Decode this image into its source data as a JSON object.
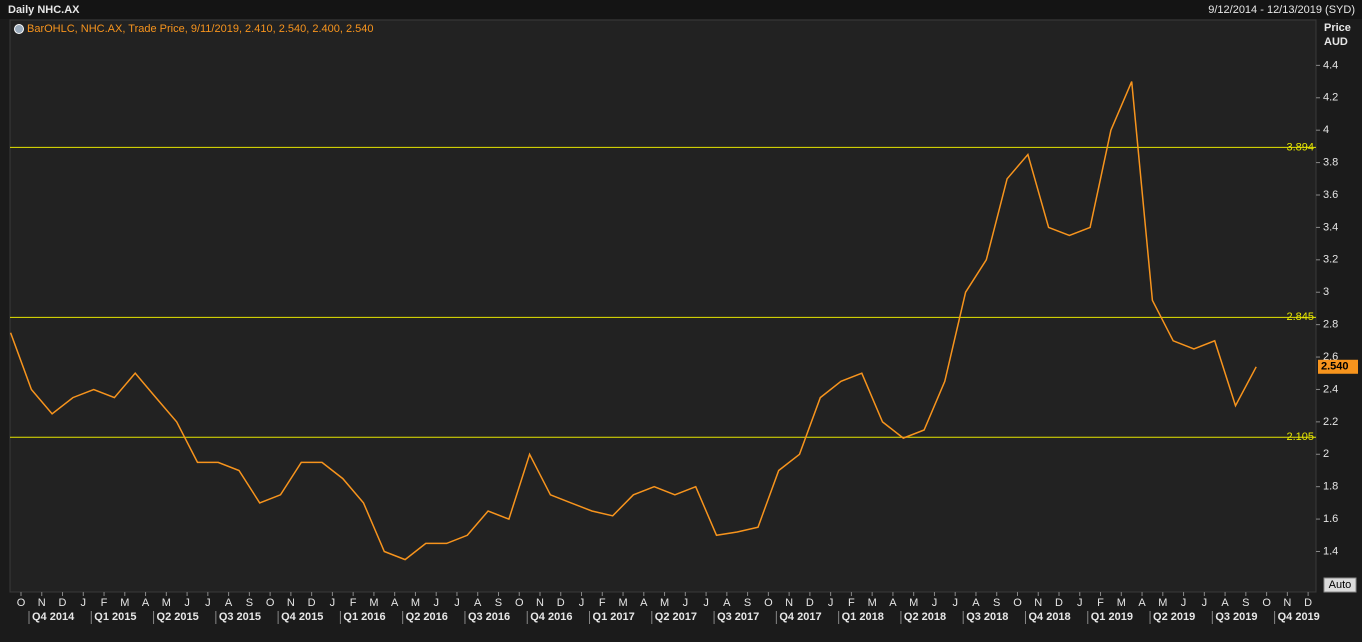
{
  "chart_data": {
    "type": "line",
    "title": "Daily NHC.AX",
    "subtitle": "9/12/2014 - 12/13/2019 (SYD)",
    "legend_text": "BarOHLC, NHC.AX, Trade Price, 9/11/2019, 2.410, 2.540, 2.400, 2.540",
    "y_axis_label": "Price",
    "y_axis_unit": "AUD",
    "auto_button": "Auto",
    "color": "#f7941d",
    "line_color": "#e6e600",
    "x": [
      "2014-09",
      "2014-10",
      "2014-11",
      "2014-12",
      "2015-01",
      "2015-02",
      "2015-03",
      "2015-04",
      "2015-05",
      "2015-06",
      "2015-07",
      "2015-08",
      "2015-09",
      "2015-10",
      "2015-11",
      "2015-12",
      "2016-01",
      "2016-02",
      "2016-03",
      "2016-04",
      "2016-05",
      "2016-06",
      "2016-07",
      "2016-08",
      "2016-09",
      "2016-10",
      "2016-11",
      "2016-12",
      "2017-01",
      "2017-02",
      "2017-03",
      "2017-04",
      "2017-05",
      "2017-06",
      "2017-07",
      "2017-08",
      "2017-09",
      "2017-10",
      "2017-11",
      "2017-12",
      "2018-01",
      "2018-02",
      "2018-03",
      "2018-04",
      "2018-05",
      "2018-06",
      "2018-07",
      "2018-08",
      "2018-09",
      "2018-10",
      "2018-11",
      "2018-12",
      "2019-01",
      "2019-02",
      "2019-03",
      "2019-04",
      "2019-05",
      "2019-06",
      "2019-07",
      "2019-08",
      "2019-09"
    ],
    "values": [
      2.75,
      2.4,
      2.25,
      2.35,
      2.4,
      2.35,
      2.5,
      2.35,
      2.2,
      1.95,
      1.95,
      1.9,
      1.7,
      1.75,
      1.95,
      1.95,
      1.85,
      1.7,
      1.4,
      1.35,
      1.45,
      1.45,
      1.5,
      1.65,
      1.6,
      2.0,
      1.75,
      1.7,
      1.65,
      1.62,
      1.75,
      1.8,
      1.75,
      1.8,
      1.5,
      1.52,
      1.55,
      1.9,
      2.0,
      2.35,
      2.45,
      2.5,
      2.2,
      2.1,
      2.15,
      2.45,
      3.0,
      3.2,
      3.7,
      3.85,
      3.4,
      3.35,
      3.4,
      4.0,
      4.3,
      2.95,
      2.7,
      2.65,
      2.7,
      2.3,
      2.54
    ],
    "last_price": {
      "value": 2.54,
      "label": "2.540"
    },
    "hlines": [
      {
        "value": 3.894,
        "label": "3.894"
      },
      {
        "value": 2.845,
        "label": "2.845"
      },
      {
        "value": 2.105,
        "label": "2.105"
      }
    ],
    "ylim": [
      1.15,
      4.68
    ],
    "yticks": [
      1.4,
      1.6,
      1.8,
      2,
      2.2,
      2.4,
      2.6,
      2.8,
      3,
      3.2,
      3.4,
      3.6,
      3.8,
      4,
      4.2,
      4.4
    ],
    "xticks": [
      {
        "value": "2014-10",
        "label": "O"
      },
      {
        "value": "2014-11",
        "label": "N"
      },
      {
        "value": "2014-12",
        "label": "D"
      },
      {
        "value": "2015-01",
        "label": "J"
      },
      {
        "value": "2015-02",
        "label": "F"
      },
      {
        "value": "2015-03",
        "label": "M"
      },
      {
        "value": "2015-04",
        "label": "A"
      },
      {
        "value": "2015-05",
        "label": "M"
      },
      {
        "value": "2015-06",
        "label": "J"
      },
      {
        "value": "2015-07",
        "label": "J"
      },
      {
        "value": "2015-08",
        "label": "A"
      },
      {
        "value": "2015-09",
        "label": "S"
      },
      {
        "value": "2015-10",
        "label": "O"
      },
      {
        "value": "2015-11",
        "label": "N"
      },
      {
        "value": "2015-12",
        "label": "D"
      },
      {
        "value": "2016-01",
        "label": "J"
      },
      {
        "value": "2016-02",
        "label": "F"
      },
      {
        "value": "2016-03",
        "label": "M"
      },
      {
        "value": "2016-04",
        "label": "A"
      },
      {
        "value": "2016-05",
        "label": "M"
      },
      {
        "value": "2016-06",
        "label": "J"
      },
      {
        "value": "2016-07",
        "label": "J"
      },
      {
        "value": "2016-08",
        "label": "A"
      },
      {
        "value": "2016-09",
        "label": "S"
      },
      {
        "value": "2016-10",
        "label": "O"
      },
      {
        "value": "2016-11",
        "label": "N"
      },
      {
        "value": "2016-12",
        "label": "D"
      },
      {
        "value": "2017-01",
        "label": "J"
      },
      {
        "value": "2017-02",
        "label": "F"
      },
      {
        "value": "2017-03",
        "label": "M"
      },
      {
        "value": "2017-04",
        "label": "A"
      },
      {
        "value": "2017-05",
        "label": "M"
      },
      {
        "value": "2017-06",
        "label": "J"
      },
      {
        "value": "2017-07",
        "label": "J"
      },
      {
        "value": "2017-08",
        "label": "A"
      },
      {
        "value": "2017-09",
        "label": "S"
      },
      {
        "value": "2017-10",
        "label": "O"
      },
      {
        "value": "2017-11",
        "label": "N"
      },
      {
        "value": "2017-12",
        "label": "D"
      },
      {
        "value": "2018-01",
        "label": "J"
      },
      {
        "value": "2018-02",
        "label": "F"
      },
      {
        "value": "2018-03",
        "label": "M"
      },
      {
        "value": "2018-04",
        "label": "A"
      },
      {
        "value": "2018-05",
        "label": "M"
      },
      {
        "value": "2018-06",
        "label": "J"
      },
      {
        "value": "2018-07",
        "label": "J"
      },
      {
        "value": "2018-08",
        "label": "A"
      },
      {
        "value": "2018-09",
        "label": "S"
      },
      {
        "value": "2018-10",
        "label": "O"
      },
      {
        "value": "2018-11",
        "label": "N"
      },
      {
        "value": "2018-12",
        "label": "D"
      },
      {
        "value": "2019-01",
        "label": "J"
      },
      {
        "value": "2019-02",
        "label": "F"
      },
      {
        "value": "2019-03",
        "label": "M"
      },
      {
        "value": "2019-04",
        "label": "A"
      },
      {
        "value": "2019-05",
        "label": "M"
      },
      {
        "value": "2019-06",
        "label": "J"
      },
      {
        "value": "2019-07",
        "label": "J"
      },
      {
        "value": "2019-08",
        "label": "A"
      },
      {
        "value": "2019-09",
        "label": "S"
      },
      {
        "value": "2019-10",
        "label": "O"
      },
      {
        "value": "2019-11",
        "label": "N"
      },
      {
        "value": "2019-12",
        "label": "D"
      }
    ],
    "quarters": [
      {
        "value": "2014-10",
        "label": "Q4 2014"
      },
      {
        "value": "2015-01",
        "label": "Q1 2015"
      },
      {
        "value": "2015-04",
        "label": "Q2 2015"
      },
      {
        "value": "2015-07",
        "label": "Q3 2015"
      },
      {
        "value": "2015-10",
        "label": "Q4 2015"
      },
      {
        "value": "2016-01",
        "label": "Q1 2016"
      },
      {
        "value": "2016-04",
        "label": "Q2 2016"
      },
      {
        "value": "2016-07",
        "label": "Q3 2016"
      },
      {
        "value": "2016-10",
        "label": "Q4 2016"
      },
      {
        "value": "2017-01",
        "label": "Q1 2017"
      },
      {
        "value": "2017-04",
        "label": "Q2 2017"
      },
      {
        "value": "2017-07",
        "label": "Q3 2017"
      },
      {
        "value": "2017-10",
        "label": "Q4 2017"
      },
      {
        "value": "2018-01",
        "label": "Q1 2018"
      },
      {
        "value": "2018-04",
        "label": "Q2 2018"
      },
      {
        "value": "2018-07",
        "label": "Q3 2018"
      },
      {
        "value": "2018-10",
        "label": "Q4 2018"
      },
      {
        "value": "2019-01",
        "label": "Q1 2019"
      },
      {
        "value": "2019-04",
        "label": "Q2 2019"
      },
      {
        "value": "2019-07",
        "label": "Q3 2019"
      },
      {
        "value": "2019-10",
        "label": "Q4 2019"
      }
    ]
  }
}
